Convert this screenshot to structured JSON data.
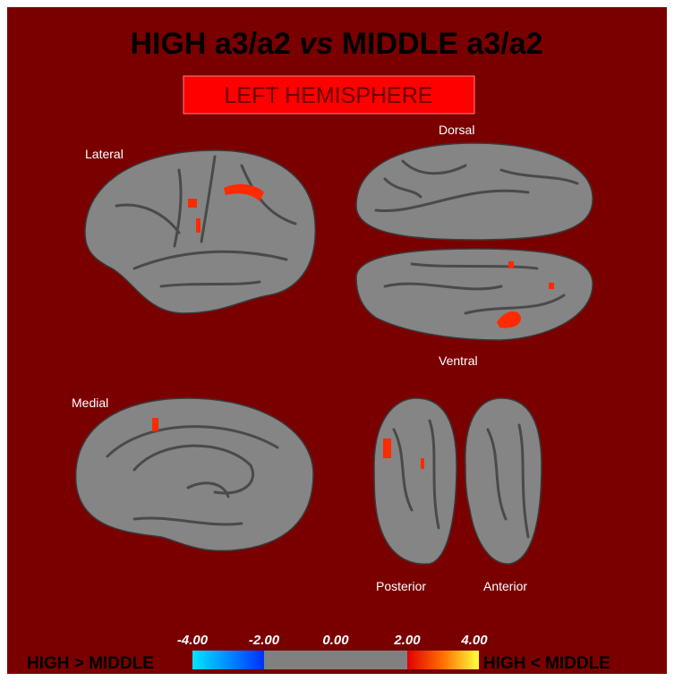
{
  "title": {
    "before": "HIGH a3/a2",
    "italic": "vs",
    "after": "MIDDLE a3/a2"
  },
  "hemisphere": "LEFT HEMISPHERE",
  "views": {
    "lateral": "Lateral",
    "dorsal": "Dorsal",
    "ventral": "Ventral",
    "medial": "Medial",
    "posterior": "Posterior",
    "anterior": "Anterior"
  },
  "colorbar": {
    "ticks": [
      "-4.00",
      "-2.00",
      "0.00",
      "2.00",
      "4.00"
    ],
    "left_label": "HIGH > MIDDLE",
    "right_label": "HIGH < MIDDLE"
  }
}
